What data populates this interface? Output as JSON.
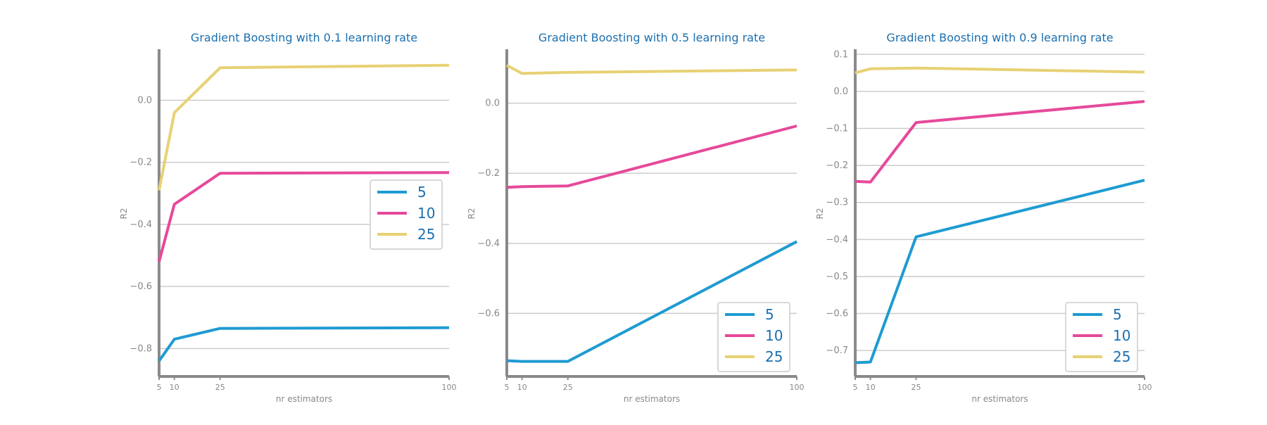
{
  "colors": {
    "title": "#1a6fb0",
    "axis": "#8a8a8a",
    "grid": "#cccccc",
    "legend_text": "#1a6fb0"
  },
  "chart_data": [
    {
      "type": "line",
      "title": "Gradient Boosting with 0.1 learning rate",
      "xlabel": "nr estimators",
      "ylabel": "R2",
      "x": [
        5,
        10,
        25,
        100
      ],
      "xticks": [
        "5",
        "10",
        "25",
        "100"
      ],
      "xlim": [
        5,
        100
      ],
      "ylim": [
        -0.89,
        0.16
      ],
      "yticks": [
        0.0,
        -0.2,
        -0.4,
        -0.6,
        -0.8
      ],
      "ytick_labels": [
        "0.0",
        "−0.2",
        "−0.4",
        "−0.6",
        "−0.8"
      ],
      "grid": "horizontal",
      "legend_position": "center-right",
      "series": [
        {
          "name": "5",
          "color": "#1f9bd1",
          "values": [
            -0.84,
            -0.77,
            -0.735,
            -0.733
          ]
        },
        {
          "name": "10",
          "color": "#e6499a",
          "values": [
            -0.52,
            -0.335,
            -0.235,
            -0.233
          ]
        },
        {
          "name": "25",
          "color": "#e8d174",
          "values": [
            -0.29,
            -0.04,
            0.105,
            0.113
          ]
        }
      ]
    },
    {
      "type": "line",
      "title": "Gradient Boosting with 0.5 learning rate",
      "xlabel": "nr estimators",
      "ylabel": "R2",
      "x": [
        5,
        10,
        25,
        100
      ],
      "xticks": [
        "5",
        "10",
        "25",
        "100"
      ],
      "xlim": [
        5,
        100
      ],
      "ylim": [
        -0.78,
        0.15
      ],
      "yticks": [
        0.0,
        -0.2,
        -0.4,
        -0.6
      ],
      "ytick_labels": [
        "0.0",
        "−0.2",
        "−0.4",
        "−0.6"
      ],
      "grid": "horizontal",
      "legend_position": "lower-right",
      "series": [
        {
          "name": "5",
          "color": "#1f9bd1",
          "values": [
            -0.735,
            -0.737,
            -0.737,
            -0.395
          ]
        },
        {
          "name": "10",
          "color": "#e6499a",
          "values": [
            -0.24,
            -0.238,
            -0.236,
            -0.065
          ]
        },
        {
          "name": "25",
          "color": "#e8d174",
          "values": [
            0.108,
            0.085,
            0.088,
            0.095
          ]
        }
      ]
    },
    {
      "type": "line",
      "title": "Gradient Boosting with 0.9 learning rate",
      "xlabel": "nr estimators",
      "ylabel": "R2",
      "x": [
        5,
        10,
        25,
        100
      ],
      "xticks": [
        "5",
        "10",
        "25",
        "100"
      ],
      "xlim": [
        5,
        100
      ],
      "ylim": [
        -0.77,
        0.11
      ],
      "yticks": [
        0.1,
        0.0,
        -0.1,
        -0.2,
        -0.3,
        -0.4,
        -0.5,
        -0.6,
        -0.7
      ],
      "ytick_labels": [
        "0.1",
        "0.0",
        "−0.1",
        "−0.2",
        "−0.3",
        "−0.4",
        "−0.5",
        "−0.6",
        "−0.7"
      ],
      "grid": "horizontal",
      "legend_position": "lower-right",
      "series": [
        {
          "name": "5",
          "color": "#1f9bd1",
          "values": [
            -0.733,
            -0.731,
            -0.393,
            -0.24
          ]
        },
        {
          "name": "10",
          "color": "#e6499a",
          "values": [
            -0.243,
            -0.245,
            -0.084,
            -0.027
          ]
        },
        {
          "name": "25",
          "color": "#e8d174",
          "values": [
            0.05,
            0.061,
            0.063,
            0.052
          ]
        }
      ]
    }
  ]
}
